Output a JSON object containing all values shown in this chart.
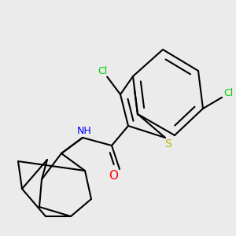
{
  "bg_color": "#ebebeb",
  "bond_color": "#000000",
  "S_color": "#b8b800",
  "N_color": "#0000ff",
  "O_color": "#ff0000",
  "Cl_color": "#00cc00",
  "lw": 1.5,
  "fig_w": 3.0,
  "fig_h": 3.0,
  "dpi": 100,
  "xlim": [
    0,
    300
  ],
  "ylim": [
    0,
    300
  ]
}
